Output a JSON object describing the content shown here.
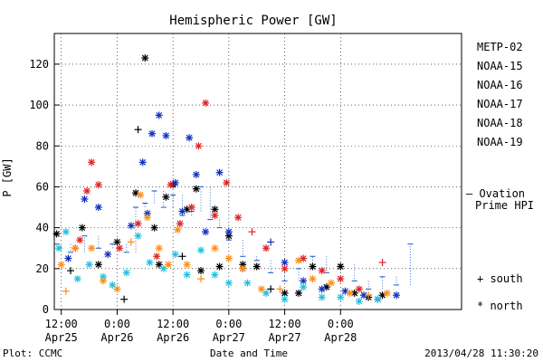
{
  "chart_data": {
    "type": "scatter",
    "title": "Hemispheric Power [GW]",
    "ylabel": "P [GW]",
    "xlabel": "Date and Time",
    "ylim": [
      0,
      135
    ],
    "xlim": [
      "2013-04-25T10:30",
      "2013-04-29T02:00"
    ],
    "yticks": [
      0,
      20,
      40,
      60,
      80,
      100,
      120
    ],
    "xticks": [
      {
        "label": "12:00",
        "sub": "Apr25",
        "at": "2013-04-25T12:00"
      },
      {
        "label": "0:00",
        "sub": "Apr26",
        "at": "2013-04-26T00:00"
      },
      {
        "label": "12:00",
        "sub": "Apr26",
        "at": "2013-04-26T12:00"
      },
      {
        "label": "0:00",
        "sub": "Apr27",
        "at": "2013-04-27T00:00"
      },
      {
        "label": "12:00",
        "sub": "Apr27",
        "at": "2013-04-27T12:00"
      },
      {
        "label": "0:00",
        "sub": "Apr28",
        "at": "2013-04-28T00:00"
      }
    ],
    "grid": true,
    "legend_position": "right",
    "series": [
      {
        "name": "METP-02",
        "color": "#000000",
        "points": [
          [
            "2013-04-25T11:00",
            37,
            "north"
          ],
          [
            "2013-04-25T14:00",
            19,
            "south"
          ],
          [
            "2013-04-25T16:30",
            40,
            "north"
          ],
          [
            "2013-04-25T20:00",
            22,
            "north"
          ],
          [
            "2013-04-26T00:00",
            33,
            "north"
          ],
          [
            "2013-04-26T01:30",
            5,
            "south"
          ],
          [
            "2013-04-26T04:00",
            57,
            "north"
          ],
          [
            "2013-04-26T04:30",
            88,
            "south"
          ],
          [
            "2013-04-26T06:00",
            123,
            "north"
          ],
          [
            "2013-04-26T08:00",
            40,
            "north"
          ],
          [
            "2013-04-26T09:00",
            22,
            "north"
          ],
          [
            "2013-04-26T10:30",
            55,
            "north"
          ],
          [
            "2013-04-26T12:00",
            61,
            "north"
          ],
          [
            "2013-04-26T14:00",
            26,
            "south"
          ],
          [
            "2013-04-26T15:00",
            49,
            "north"
          ],
          [
            "2013-04-26T17:00",
            59,
            "north"
          ],
          [
            "2013-04-26T18:00",
            19,
            "north"
          ],
          [
            "2013-04-26T21:00",
            49,
            "north"
          ],
          [
            "2013-04-26T22:00",
            21,
            "north"
          ],
          [
            "2013-04-27T00:00",
            36,
            "north"
          ],
          [
            "2013-04-27T03:00",
            22,
            "north"
          ],
          [
            "2013-04-27T06:00",
            21,
            "north"
          ],
          [
            "2013-04-27T09:00",
            10,
            "south"
          ],
          [
            "2013-04-27T12:00",
            8,
            "north"
          ],
          [
            "2013-04-27T15:00",
            8,
            "north"
          ],
          [
            "2013-04-27T18:00",
            21,
            "north"
          ],
          [
            "2013-04-27T21:00",
            11,
            "north"
          ],
          [
            "2013-04-28T00:00",
            21,
            "north"
          ],
          [
            "2013-04-28T03:00",
            8,
            "north"
          ],
          [
            "2013-04-28T06:00",
            6,
            "north"
          ],
          [
            "2013-04-28T09:00",
            7,
            "north"
          ]
        ]
      },
      {
        "name": "NOAA-15",
        "color": "#1030c0",
        "points": [
          [
            "2013-04-25T13:30",
            25,
            "north"
          ],
          [
            "2013-04-25T15:00",
            30,
            "south"
          ],
          [
            "2013-04-25T17:00",
            54,
            "north"
          ],
          [
            "2013-04-25T20:00",
            50,
            "north"
          ],
          [
            "2013-04-25T22:00",
            27,
            "north"
          ],
          [
            "2013-04-26T03:00",
            41,
            "north"
          ],
          [
            "2013-04-26T05:30",
            72,
            "north"
          ],
          [
            "2013-04-26T06:30",
            47,
            "north"
          ],
          [
            "2013-04-26T07:30",
            86,
            "north"
          ],
          [
            "2013-04-26T09:00",
            95,
            "north"
          ],
          [
            "2013-04-26T10:30",
            85,
            "north"
          ],
          [
            "2013-04-26T12:30",
            62,
            "north"
          ],
          [
            "2013-04-26T14:00",
            48,
            "north"
          ],
          [
            "2013-04-26T15:30",
            84,
            "north"
          ],
          [
            "2013-04-26T17:00",
            66,
            "north"
          ],
          [
            "2013-04-26T19:00",
            38,
            "north"
          ],
          [
            "2013-04-26T22:00",
            67,
            "north"
          ],
          [
            "2013-04-27T00:00",
            38,
            "north"
          ],
          [
            "2013-04-27T03:00",
            20,
            "north"
          ],
          [
            "2013-04-27T09:00",
            33,
            "south"
          ],
          [
            "2013-04-27T12:00",
            23,
            "north"
          ],
          [
            "2013-04-27T16:00",
            14,
            "north"
          ],
          [
            "2013-04-27T20:00",
            10,
            "north"
          ],
          [
            "2013-04-28T01:00",
            9,
            "north"
          ],
          [
            "2013-04-28T05:00",
            7,
            "north"
          ],
          [
            "2013-04-28T08:00",
            5,
            "north"
          ],
          [
            "2013-04-28T12:00",
            7,
            "north"
          ]
        ]
      },
      {
        "name": "NOAA-16",
        "color": "#20c0e0",
        "points": [
          [
            "2013-04-25T11:30",
            30,
            "north"
          ],
          [
            "2013-04-25T13:00",
            38,
            "north"
          ],
          [
            "2013-04-25T15:30",
            15,
            "north"
          ],
          [
            "2013-04-25T18:00",
            22,
            "north"
          ],
          [
            "2013-04-25T21:00",
            16,
            "north"
          ],
          [
            "2013-04-25T23:00",
            12,
            "north"
          ],
          [
            "2013-04-26T02:00",
            18,
            "north"
          ],
          [
            "2013-04-26T04:30",
            36,
            "north"
          ],
          [
            "2013-04-26T07:00",
            23,
            "north"
          ],
          [
            "2013-04-26T10:00",
            20,
            "north"
          ],
          [
            "2013-04-26T12:30",
            27,
            "north"
          ],
          [
            "2013-04-26T15:00",
            17,
            "north"
          ],
          [
            "2013-04-26T18:00",
            29,
            "north"
          ],
          [
            "2013-04-26T21:00",
            17,
            "north"
          ],
          [
            "2013-04-27T00:00",
            13,
            "north"
          ],
          [
            "2013-04-27T04:00",
            13,
            "north"
          ],
          [
            "2013-04-27T08:00",
            8,
            "north"
          ],
          [
            "2013-04-27T12:00",
            5,
            "north"
          ],
          [
            "2013-04-27T16:00",
            11,
            "north"
          ],
          [
            "2013-04-27T20:00",
            6,
            "north"
          ],
          [
            "2013-04-28T00:00",
            6,
            "north"
          ],
          [
            "2013-04-28T04:00",
            4,
            "north"
          ],
          [
            "2013-04-28T08:00",
            5,
            "north"
          ]
        ]
      },
      {
        "name": "NOAA-17",
        "color": "#20e080",
        "points": []
      },
      {
        "name": "NOAA-18",
        "color": "#ff8c10",
        "points": [
          [
            "2013-04-25T12:00",
            22,
            "north"
          ],
          [
            "2013-04-25T13:00",
            9,
            "south"
          ],
          [
            "2013-04-25T15:00",
            30,
            "north"
          ],
          [
            "2013-04-25T18:30",
            30,
            "north"
          ],
          [
            "2013-04-25T21:00",
            14,
            "north"
          ],
          [
            "2013-04-26T00:00",
            10,
            "north"
          ],
          [
            "2013-04-26T03:00",
            33,
            "south"
          ],
          [
            "2013-04-26T05:00",
            56,
            "north"
          ],
          [
            "2013-04-26T06:30",
            45,
            "north"
          ],
          [
            "2013-04-26T09:00",
            30,
            "north"
          ],
          [
            "2013-04-26T11:00",
            22,
            "north"
          ],
          [
            "2013-04-26T13:00",
            39,
            "north"
          ],
          [
            "2013-04-26T15:00",
            22,
            "north"
          ],
          [
            "2013-04-26T18:00",
            15,
            "south"
          ],
          [
            "2013-04-26T21:00",
            30,
            "north"
          ],
          [
            "2013-04-27T00:00",
            25,
            "north"
          ],
          [
            "2013-04-27T03:00",
            20,
            "north"
          ],
          [
            "2013-04-27T07:00",
            10,
            "north"
          ],
          [
            "2013-04-27T11:00",
            10,
            "south"
          ],
          [
            "2013-04-27T15:00",
            24,
            "north"
          ],
          [
            "2013-04-27T18:00",
            15,
            "north"
          ],
          [
            "2013-04-27T22:00",
            13,
            "north"
          ],
          [
            "2013-04-28T02:00",
            8,
            "north"
          ],
          [
            "2013-04-28T06:00",
            7,
            "south"
          ],
          [
            "2013-04-28T10:00",
            8,
            "north"
          ]
        ]
      },
      {
        "name": "NOAA-19",
        "color": "#e02020",
        "points": [
          [
            "2013-04-25T16:00",
            34,
            "north"
          ],
          [
            "2013-04-25T17:30",
            58,
            "north"
          ],
          [
            "2013-04-25T18:30",
            72,
            "north"
          ],
          [
            "2013-04-25T20:00",
            61,
            "north"
          ],
          [
            "2013-04-26T00:30",
            30,
            "north"
          ],
          [
            "2013-04-26T04:30",
            42,
            "north"
          ],
          [
            "2013-04-26T08:30",
            26,
            "north"
          ],
          [
            "2013-04-26T11:30",
            61,
            "north"
          ],
          [
            "2013-04-26T13:30",
            42,
            "north"
          ],
          [
            "2013-04-26T16:00",
            50,
            "north"
          ],
          [
            "2013-04-26T17:30",
            80,
            "north"
          ],
          [
            "2013-04-26T19:00",
            101,
            "north"
          ],
          [
            "2013-04-26T21:00",
            46,
            "north"
          ],
          [
            "2013-04-26T23:30",
            62,
            "north"
          ],
          [
            "2013-04-27T02:00",
            45,
            "north"
          ],
          [
            "2013-04-27T05:00",
            38,
            "south"
          ],
          [
            "2013-04-27T08:00",
            30,
            "north"
          ],
          [
            "2013-04-27T12:00",
            20,
            "north"
          ],
          [
            "2013-04-27T16:00",
            25,
            "north"
          ],
          [
            "2013-04-27T20:00",
            19,
            "north"
          ],
          [
            "2013-04-28T00:00",
            15,
            "north"
          ],
          [
            "2013-04-28T04:00",
            10,
            "north"
          ],
          [
            "2013-04-28T09:00",
            23,
            "south"
          ]
        ]
      }
    ],
    "ovation_series": {
      "name": "– Ovation Prime HPI",
      "color": "#1050d0",
      "values": [
        [
          "2013-04-25T11:00",
          32
        ],
        [
          "2013-04-25T14:00",
          28
        ],
        [
          "2013-04-25T17:00",
          36
        ],
        [
          "2013-04-25T20:00",
          30
        ],
        [
          "2013-04-25T23:00",
          32
        ],
        [
          "2013-04-26T02:00",
          28
        ],
        [
          "2013-04-26T04:00",
          50
        ],
        [
          "2013-04-26T06:00",
          52
        ],
        [
          "2013-04-26T08:00",
          58
        ],
        [
          "2013-04-26T10:00",
          50
        ],
        [
          "2013-04-26T12:00",
          56
        ],
        [
          "2013-04-26T14:00",
          46
        ],
        [
          "2013-04-26T16:00",
          48
        ],
        [
          "2013-04-26T18:00",
          60
        ],
        [
          "2013-04-26T20:00",
          44
        ],
        [
          "2013-04-26T22:00",
          40
        ],
        [
          "2013-04-27T00:00",
          34
        ],
        [
          "2013-04-27T03:00",
          26
        ],
        [
          "2013-04-27T06:00",
          24
        ],
        [
          "2013-04-27T09:00",
          18
        ],
        [
          "2013-04-27T12:00",
          14
        ],
        [
          "2013-04-27T15:00",
          20
        ],
        [
          "2013-04-27T18:00",
          26
        ],
        [
          "2013-04-27T21:00",
          18
        ],
        [
          "2013-04-28T00:00",
          22
        ],
        [
          "2013-04-28T03:00",
          14
        ],
        [
          "2013-04-28T06:00",
          10
        ],
        [
          "2013-04-28T09:00",
          16
        ],
        [
          "2013-04-28T12:00",
          12
        ],
        [
          "2013-04-28T15:00",
          32
        ]
      ]
    },
    "legend": [
      {
        "label": "METP-02",
        "color": "#000000"
      },
      {
        "label": "NOAA-15",
        "color": "#1030c0"
      },
      {
        "label": "NOAA-16",
        "color": "#20c0e0"
      },
      {
        "label": "NOAA-17",
        "color": "#20e080"
      },
      {
        "label": "NOAA-18",
        "color": "#ff8c10"
      },
      {
        "label": "NOAA-19",
        "color": "#e02020"
      }
    ],
    "ovation_label_line1": "– Ovation",
    "ovation_label_line2": "Prime HPI",
    "marker_legend": [
      {
        "symbol": "+",
        "label": "south"
      },
      {
        "symbol": "*",
        "label": "north"
      }
    ]
  },
  "footer": {
    "left": "Plot: CCMC",
    "center": "Date and Time",
    "right": "2013/04/28 11:30:20"
  }
}
